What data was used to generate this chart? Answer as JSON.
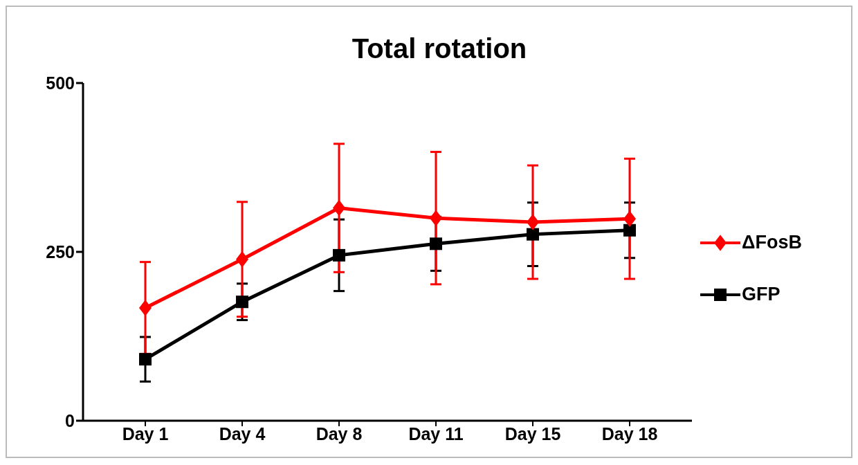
{
  "chart_data": {
    "type": "line",
    "title": "Total rotation",
    "categories": [
      "Day 1",
      "Day 4",
      "Day 8",
      "Day 11",
      "Day 15",
      "Day 18"
    ],
    "series": [
      {
        "name": "ΔFosB",
        "color": "#ff0000",
        "marker": "diamond",
        "values": [
          167,
          239,
          315,
          300,
          294,
          299
        ],
        "errors": [
          68,
          85,
          95,
          98,
          84,
          89
        ]
      },
      {
        "name": "GFP",
        "color": "#000000",
        "marker": "square",
        "values": [
          91,
          176,
          245,
          262,
          276,
          282
        ],
        "errors": [
          33,
          27,
          53,
          40,
          47,
          41
        ]
      }
    ],
    "ylim": [
      0,
      500
    ],
    "yticks": [
      0,
      250,
      500
    ],
    "grid": false,
    "legend": "right"
  }
}
